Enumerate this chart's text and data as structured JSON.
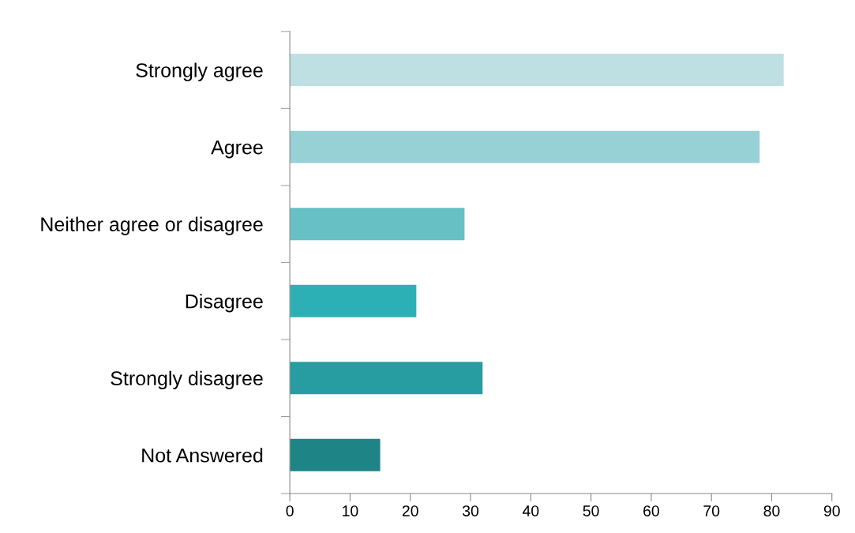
{
  "chart_data": {
    "type": "bar",
    "orientation": "horizontal",
    "categories": [
      "Strongly agree",
      "Agree",
      "Neither agree or disagree",
      "Disagree",
      "Strongly disagree",
      "Not Answered"
    ],
    "values": [
      82,
      78,
      29,
      21,
      32,
      15
    ],
    "colors": [
      "#bfe0e3",
      "#98d1d5",
      "#66c0c4",
      "#2db0b5",
      "#279da1",
      "#1e8486"
    ],
    "xlim": [
      0,
      90
    ],
    "xticks": [
      0,
      10,
      20,
      30,
      40,
      50,
      60,
      70,
      80,
      90
    ],
    "grid": false,
    "legend": false
  }
}
